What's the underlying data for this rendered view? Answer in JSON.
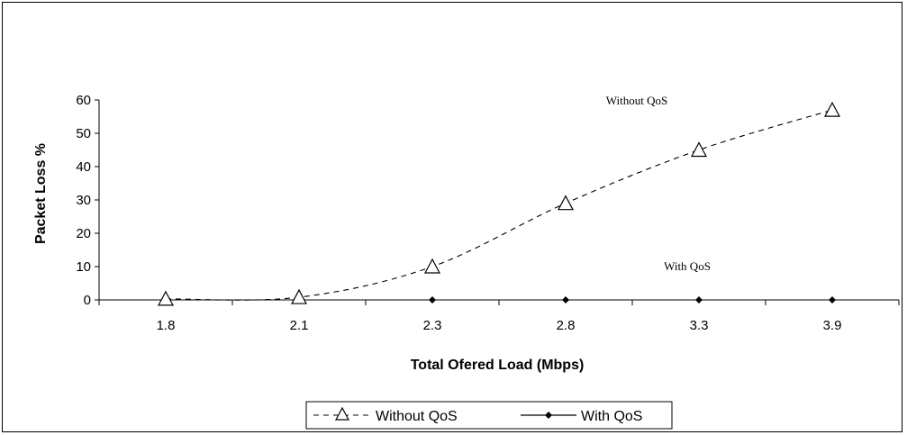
{
  "chart_data": {
    "type": "line",
    "categories": [
      "1.8",
      "2.1",
      "2.3",
      "2.8",
      "3.3",
      "3.9"
    ],
    "series": [
      {
        "name": "Without QoS",
        "values": [
          0.3,
          0.8,
          10,
          29,
          45,
          57
        ],
        "line_style": "dashed",
        "marker": "open-triangle",
        "color": "#000000"
      },
      {
        "name": "With QoS",
        "values": [
          0,
          0,
          0,
          0,
          0,
          0
        ],
        "line_style": "solid",
        "marker": "filled-diamond",
        "color": "#000000"
      }
    ],
    "xlabel": "Total Ofered Load (Mbps)",
    "ylabel": "Packet Loss %",
    "ylim": [
      0,
      60
    ],
    "yticks": [
      "0",
      "10",
      "20",
      "30",
      "40",
      "50",
      "60"
    ],
    "grid": false,
    "legend": "bottom",
    "annotations": [
      "Without QoS",
      "With QoS"
    ]
  }
}
